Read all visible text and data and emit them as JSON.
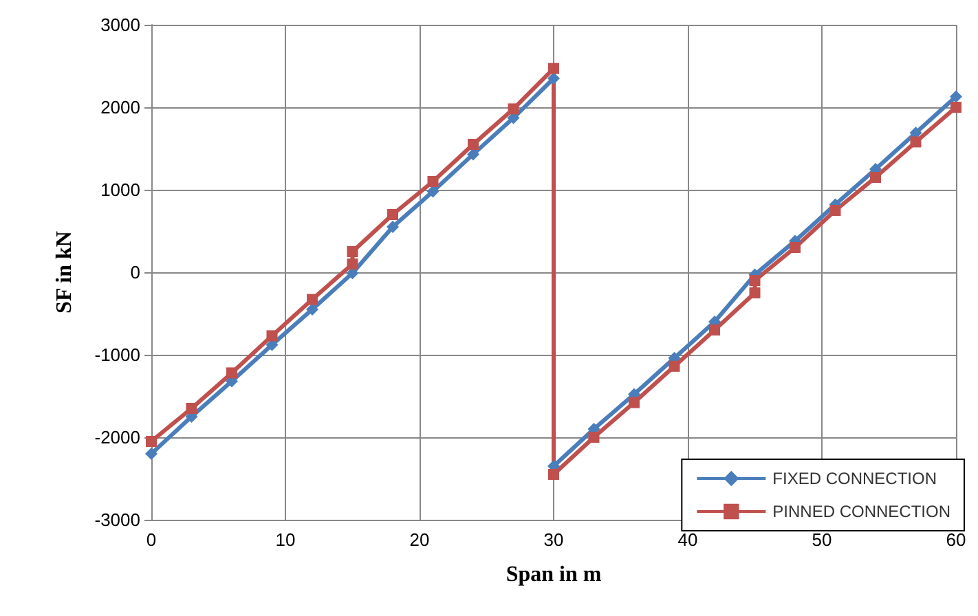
{
  "chart_data": {
    "type": "line",
    "xlabel": "Span in m",
    "ylabel": "SF in kN",
    "xlim": [
      0,
      60
    ],
    "xticks": [
      0,
      10,
      20,
      30,
      40,
      50,
      60
    ],
    "ylim": [
      -3000,
      3000
    ],
    "yticks": [
      -3000,
      -2000,
      -1000,
      0,
      1000,
      2000,
      3000
    ],
    "grid": true,
    "legend": "bottom right",
    "series": [
      {
        "name": "FIXED CONNECTION",
        "color": "#4a7ebb",
        "marker": "diamond",
        "x": [
          0,
          3,
          6,
          9,
          12,
          15,
          18,
          21,
          24,
          27,
          30,
          30,
          33,
          36,
          39,
          42,
          45,
          48,
          51,
          54,
          57,
          60
        ],
        "values": [
          -2200,
          -1750,
          -1320,
          -880,
          -450,
          -10,
          550,
          980,
          1430,
          1870,
          2350,
          -2350,
          -1900,
          -1480,
          -1040,
          -600,
          -30,
          380,
          820,
          1250,
          1690,
          2130
        ]
      },
      {
        "name": "PINNED CONNECTION",
        "color": "#c0504d",
        "marker": "square",
        "x": [
          0,
          3,
          6,
          9,
          12,
          15,
          15,
          18,
          21,
          24,
          27,
          30,
          30,
          33,
          36,
          39,
          42,
          45,
          45,
          48,
          51,
          54,
          57,
          60
        ],
        "values": [
          -2050,
          -1650,
          -1220,
          -770,
          -330,
          100,
          250,
          700,
          1100,
          1550,
          1980,
          2470,
          -2450,
          -2000,
          -1580,
          -1140,
          -700,
          -250,
          -100,
          300,
          750,
          1150,
          1580,
          2000
        ]
      }
    ]
  }
}
